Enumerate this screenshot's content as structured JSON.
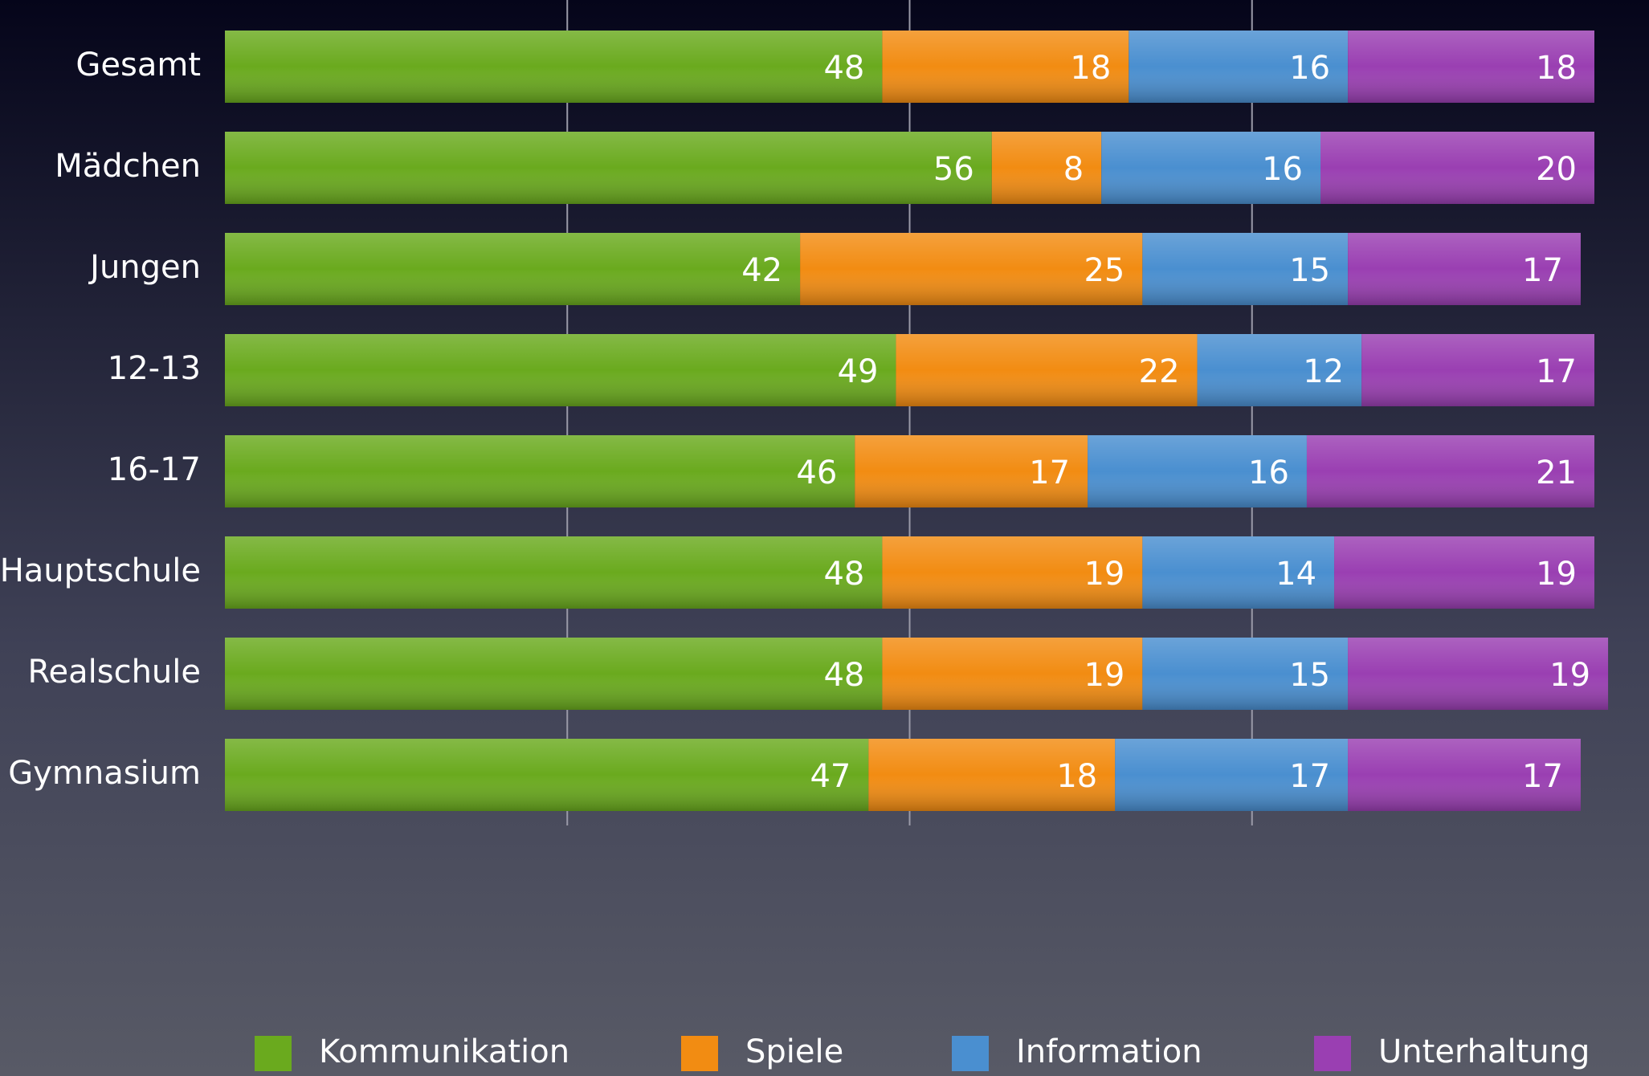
{
  "chart_data": {
    "type": "stacked_barh",
    "categories": [
      "Gesamt",
      "Mädchen",
      "Jungen",
      "12-13",
      "16-17",
      "Hauptschule",
      "Realschule",
      "Gymnasium"
    ],
    "series": [
      {
        "name": "Kommunikation",
        "color": "#6aaa1e",
        "values": [
          48,
          56,
          42,
          49,
          46,
          48,
          48,
          47
        ]
      },
      {
        "name": "Spiele",
        "color": "#f28c12",
        "values": [
          18,
          8,
          25,
          22,
          17,
          19,
          19,
          18
        ]
      },
      {
        "name": "Information",
        "color": "#4a8fd0",
        "values": [
          16,
          16,
          15,
          12,
          16,
          14,
          15,
          17
        ]
      },
      {
        "name": "Unterhaltung",
        "color": "#9a3fb2",
        "values": [
          18,
          20,
          17,
          17,
          21,
          19,
          19,
          17
        ]
      }
    ],
    "xlim": [
      0,
      100
    ],
    "xticks": [
      25,
      50,
      75
    ],
    "grid": true,
    "legend": "bottom"
  }
}
